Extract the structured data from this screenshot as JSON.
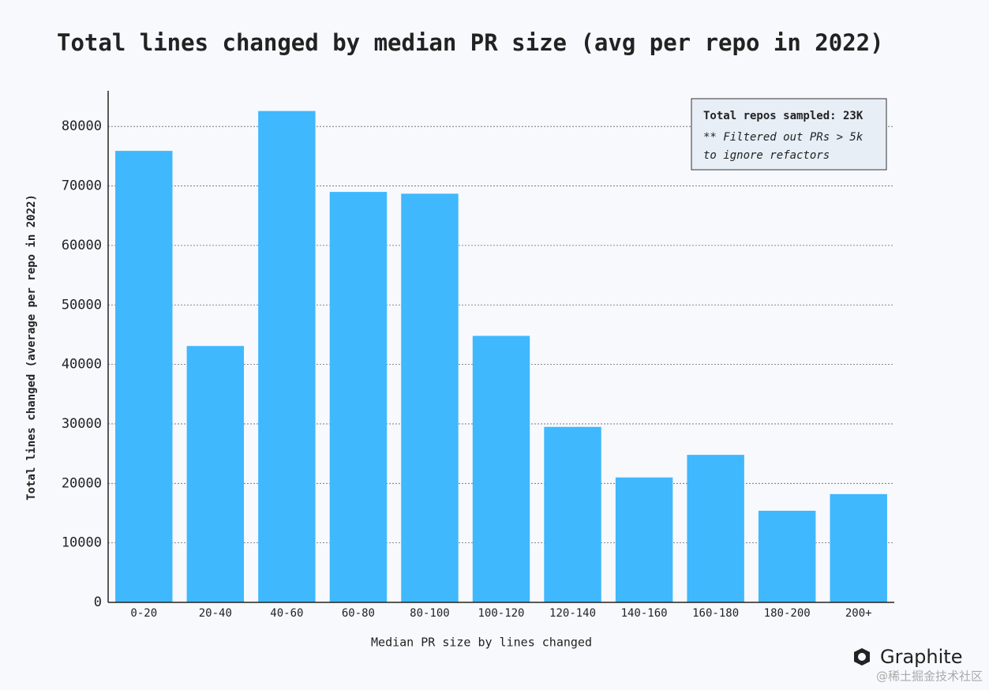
{
  "chart_data": {
    "type": "bar",
    "title": "Total lines changed by median PR size (avg per repo in 2022)",
    "x_label": "Median PR size by lines changed",
    "y_label": "Total lines changed (average per repo in 2022)",
    "categories": [
      "0-20",
      "20-40",
      "40-60",
      "60-80",
      "80-100",
      "100-120",
      "120-140",
      "140-160",
      "160-180",
      "180-200",
      "200+"
    ],
    "values": [
      75900,
      43100,
      82600,
      69000,
      68700,
      44800,
      29500,
      21000,
      24800,
      15400,
      18200
    ],
    "color": "#3fb8fd",
    "ylim": [
      0,
      86000
    ],
    "yticks": [
      0,
      10000,
      20000,
      30000,
      40000,
      50000,
      60000,
      70000,
      80000
    ],
    "grid": true,
    "annotations": [
      "Total repos sampled: 23K",
      "** Filtered out PRs > 5k",
      "to ignore refactors"
    ]
  },
  "branding": {
    "logo": "Graphite",
    "credit": "@稀土掘金技术社区"
  }
}
